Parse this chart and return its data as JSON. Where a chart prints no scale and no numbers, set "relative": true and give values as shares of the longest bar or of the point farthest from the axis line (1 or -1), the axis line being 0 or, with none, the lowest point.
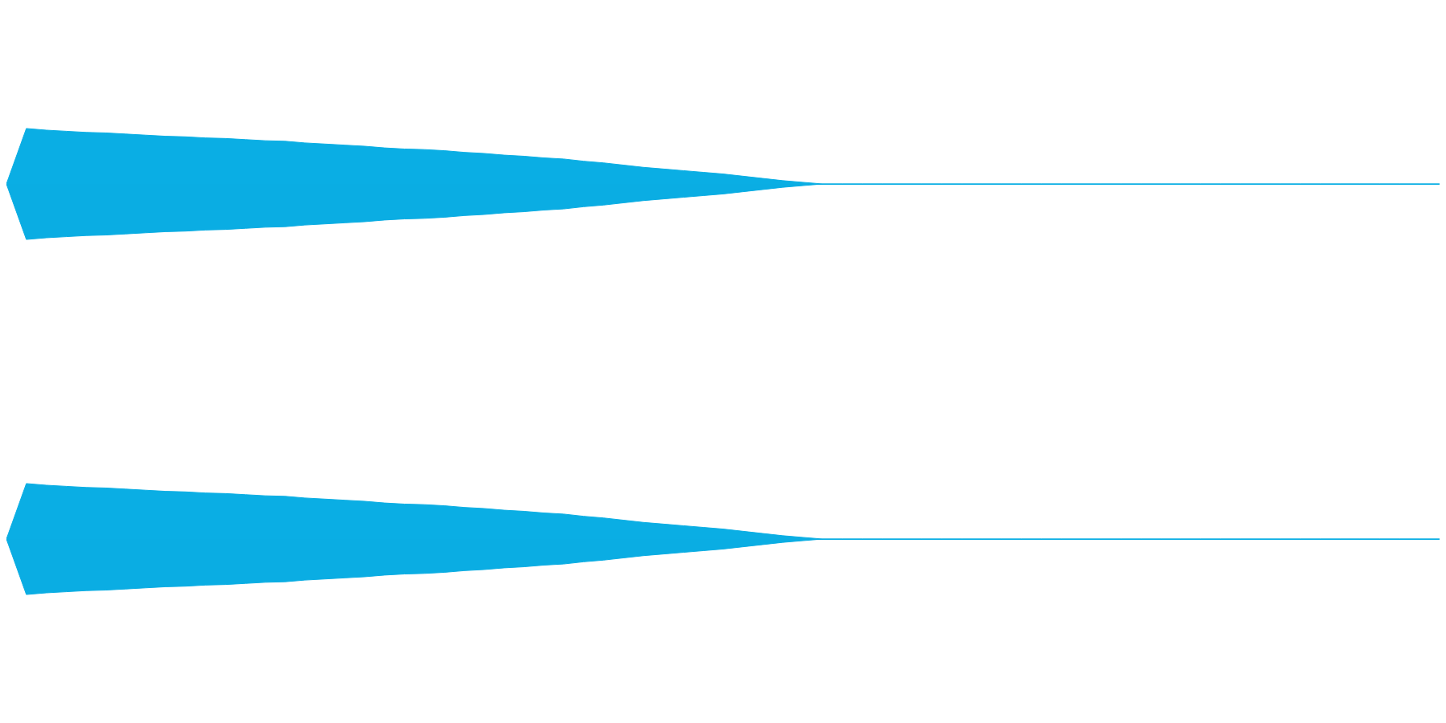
{
  "chart_data": [
    {
      "type": "area",
      "relative": true,
      "categories": [
        null,
        null,
        null,
        null,
        null,
        null,
        null,
        null,
        null,
        null,
        null,
        null,
        null,
        null,
        null,
        null,
        null,
        null,
        null,
        null,
        null,
        null,
        null,
        null,
        null,
        null,
        null,
        null,
        null,
        null,
        null,
        null,
        null,
        null,
        null,
        null,
        null,
        null,
        null,
        null,
        null,
        null,
        null,
        null,
        null,
        null,
        null,
        null,
        null,
        null,
        null,
        null,
        null,
        null,
        null,
        null,
        null,
        null,
        null,
        null,
        null,
        null,
        null,
        null,
        null,
        null,
        null,
        null,
        null,
        null,
        null,
        null,
        null
      ],
      "series": [
        {
          "color": "#0aaee4",
          "values": [
            0,
            1,
            0.97,
            0.95,
            0.93,
            0.92,
            0.9,
            0.88,
            0.86,
            0.85,
            0.83,
            0.82,
            0.8,
            0.78,
            0.77,
            0.74,
            0.72,
            0.7,
            0.68,
            0.65,
            0.63,
            0.62,
            0.6,
            0.57,
            0.55,
            0.52,
            0.5,
            0.47,
            0.45,
            0.41,
            0.38,
            0.34,
            0.3,
            0.27,
            0.24,
            0.21,
            0.18,
            0.14,
            0.1,
            0.06,
            0.03,
            0,
            0,
            0,
            0,
            0,
            0,
            0,
            0,
            0,
            0,
            0,
            0,
            0,
            0,
            0,
            0,
            0,
            0,
            0,
            0,
            0,
            0,
            0,
            0,
            0,
            0,
            0,
            0,
            0,
            0,
            0,
            0
          ]
        },
        {
          "color": "#0aade3",
          "values": [
            0,
            -1,
            -0.97,
            -0.95,
            -0.93,
            -0.92,
            -0.9,
            -0.88,
            -0.86,
            -0.85,
            -0.83,
            -0.82,
            -0.8,
            -0.78,
            -0.77,
            -0.74,
            -0.72,
            -0.7,
            -0.68,
            -0.65,
            -0.63,
            -0.62,
            -0.6,
            -0.57,
            -0.55,
            -0.52,
            -0.5,
            -0.47,
            -0.45,
            -0.41,
            -0.38,
            -0.34,
            -0.3,
            -0.27,
            -0.24,
            -0.21,
            -0.18,
            -0.14,
            -0.1,
            -0.06,
            -0.03,
            0,
            0,
            0,
            0,
            0,
            0,
            0,
            0,
            0,
            0,
            0,
            0,
            0,
            0,
            0,
            0,
            0,
            0,
            0,
            0,
            0,
            0,
            0,
            0,
            0,
            0,
            0,
            0,
            0,
            0,
            0,
            0
          ]
        }
      ]
    },
    {
      "type": "area",
      "relative": true,
      "categories": [
        null,
        null,
        null,
        null,
        null,
        null,
        null,
        null,
        null,
        null,
        null,
        null,
        null,
        null,
        null,
        null,
        null,
        null,
        null,
        null,
        null,
        null,
        null,
        null,
        null,
        null,
        null,
        null,
        null,
        null,
        null,
        null,
        null,
        null,
        null,
        null,
        null,
        null,
        null,
        null,
        null,
        null,
        null,
        null,
        null,
        null,
        null,
        null,
        null,
        null,
        null,
        null,
        null,
        null,
        null,
        null,
        null,
        null,
        null,
        null,
        null,
        null,
        null,
        null,
        null,
        null,
        null,
        null,
        null,
        null,
        null,
        null,
        null
      ],
      "series": [
        {
          "color": "#0aaee4",
          "values": [
            0,
            1,
            0.97,
            0.95,
            0.93,
            0.92,
            0.9,
            0.88,
            0.86,
            0.85,
            0.83,
            0.82,
            0.8,
            0.78,
            0.77,
            0.74,
            0.72,
            0.7,
            0.68,
            0.65,
            0.63,
            0.62,
            0.6,
            0.57,
            0.55,
            0.52,
            0.5,
            0.47,
            0.45,
            0.41,
            0.38,
            0.34,
            0.3,
            0.27,
            0.24,
            0.21,
            0.18,
            0.14,
            0.1,
            0.06,
            0.03,
            0,
            0,
            0,
            0,
            0,
            0,
            0,
            0,
            0,
            0,
            0,
            0,
            0,
            0,
            0,
            0,
            0,
            0,
            0,
            0,
            0,
            0,
            0,
            0,
            0,
            0,
            0,
            0,
            0,
            0,
            0,
            0
          ]
        },
        {
          "color": "#0aade3",
          "values": [
            0,
            -1,
            -0.97,
            -0.95,
            -0.93,
            -0.92,
            -0.9,
            -0.88,
            -0.86,
            -0.85,
            -0.83,
            -0.82,
            -0.8,
            -0.78,
            -0.77,
            -0.74,
            -0.72,
            -0.7,
            -0.68,
            -0.65,
            -0.63,
            -0.62,
            -0.6,
            -0.57,
            -0.55,
            -0.52,
            -0.5,
            -0.47,
            -0.45,
            -0.41,
            -0.38,
            -0.34,
            -0.3,
            -0.27,
            -0.24,
            -0.21,
            -0.18,
            -0.14,
            -0.1,
            -0.06,
            -0.03,
            0,
            0,
            0,
            0,
            0,
            0,
            0,
            0,
            0,
            0,
            0,
            0,
            0,
            0,
            0,
            0,
            0,
            0,
            0,
            0,
            0,
            0,
            0,
            0,
            0,
            0,
            0,
            0,
            0,
            0,
            0,
            0
          ]
        }
      ]
    }
  ]
}
